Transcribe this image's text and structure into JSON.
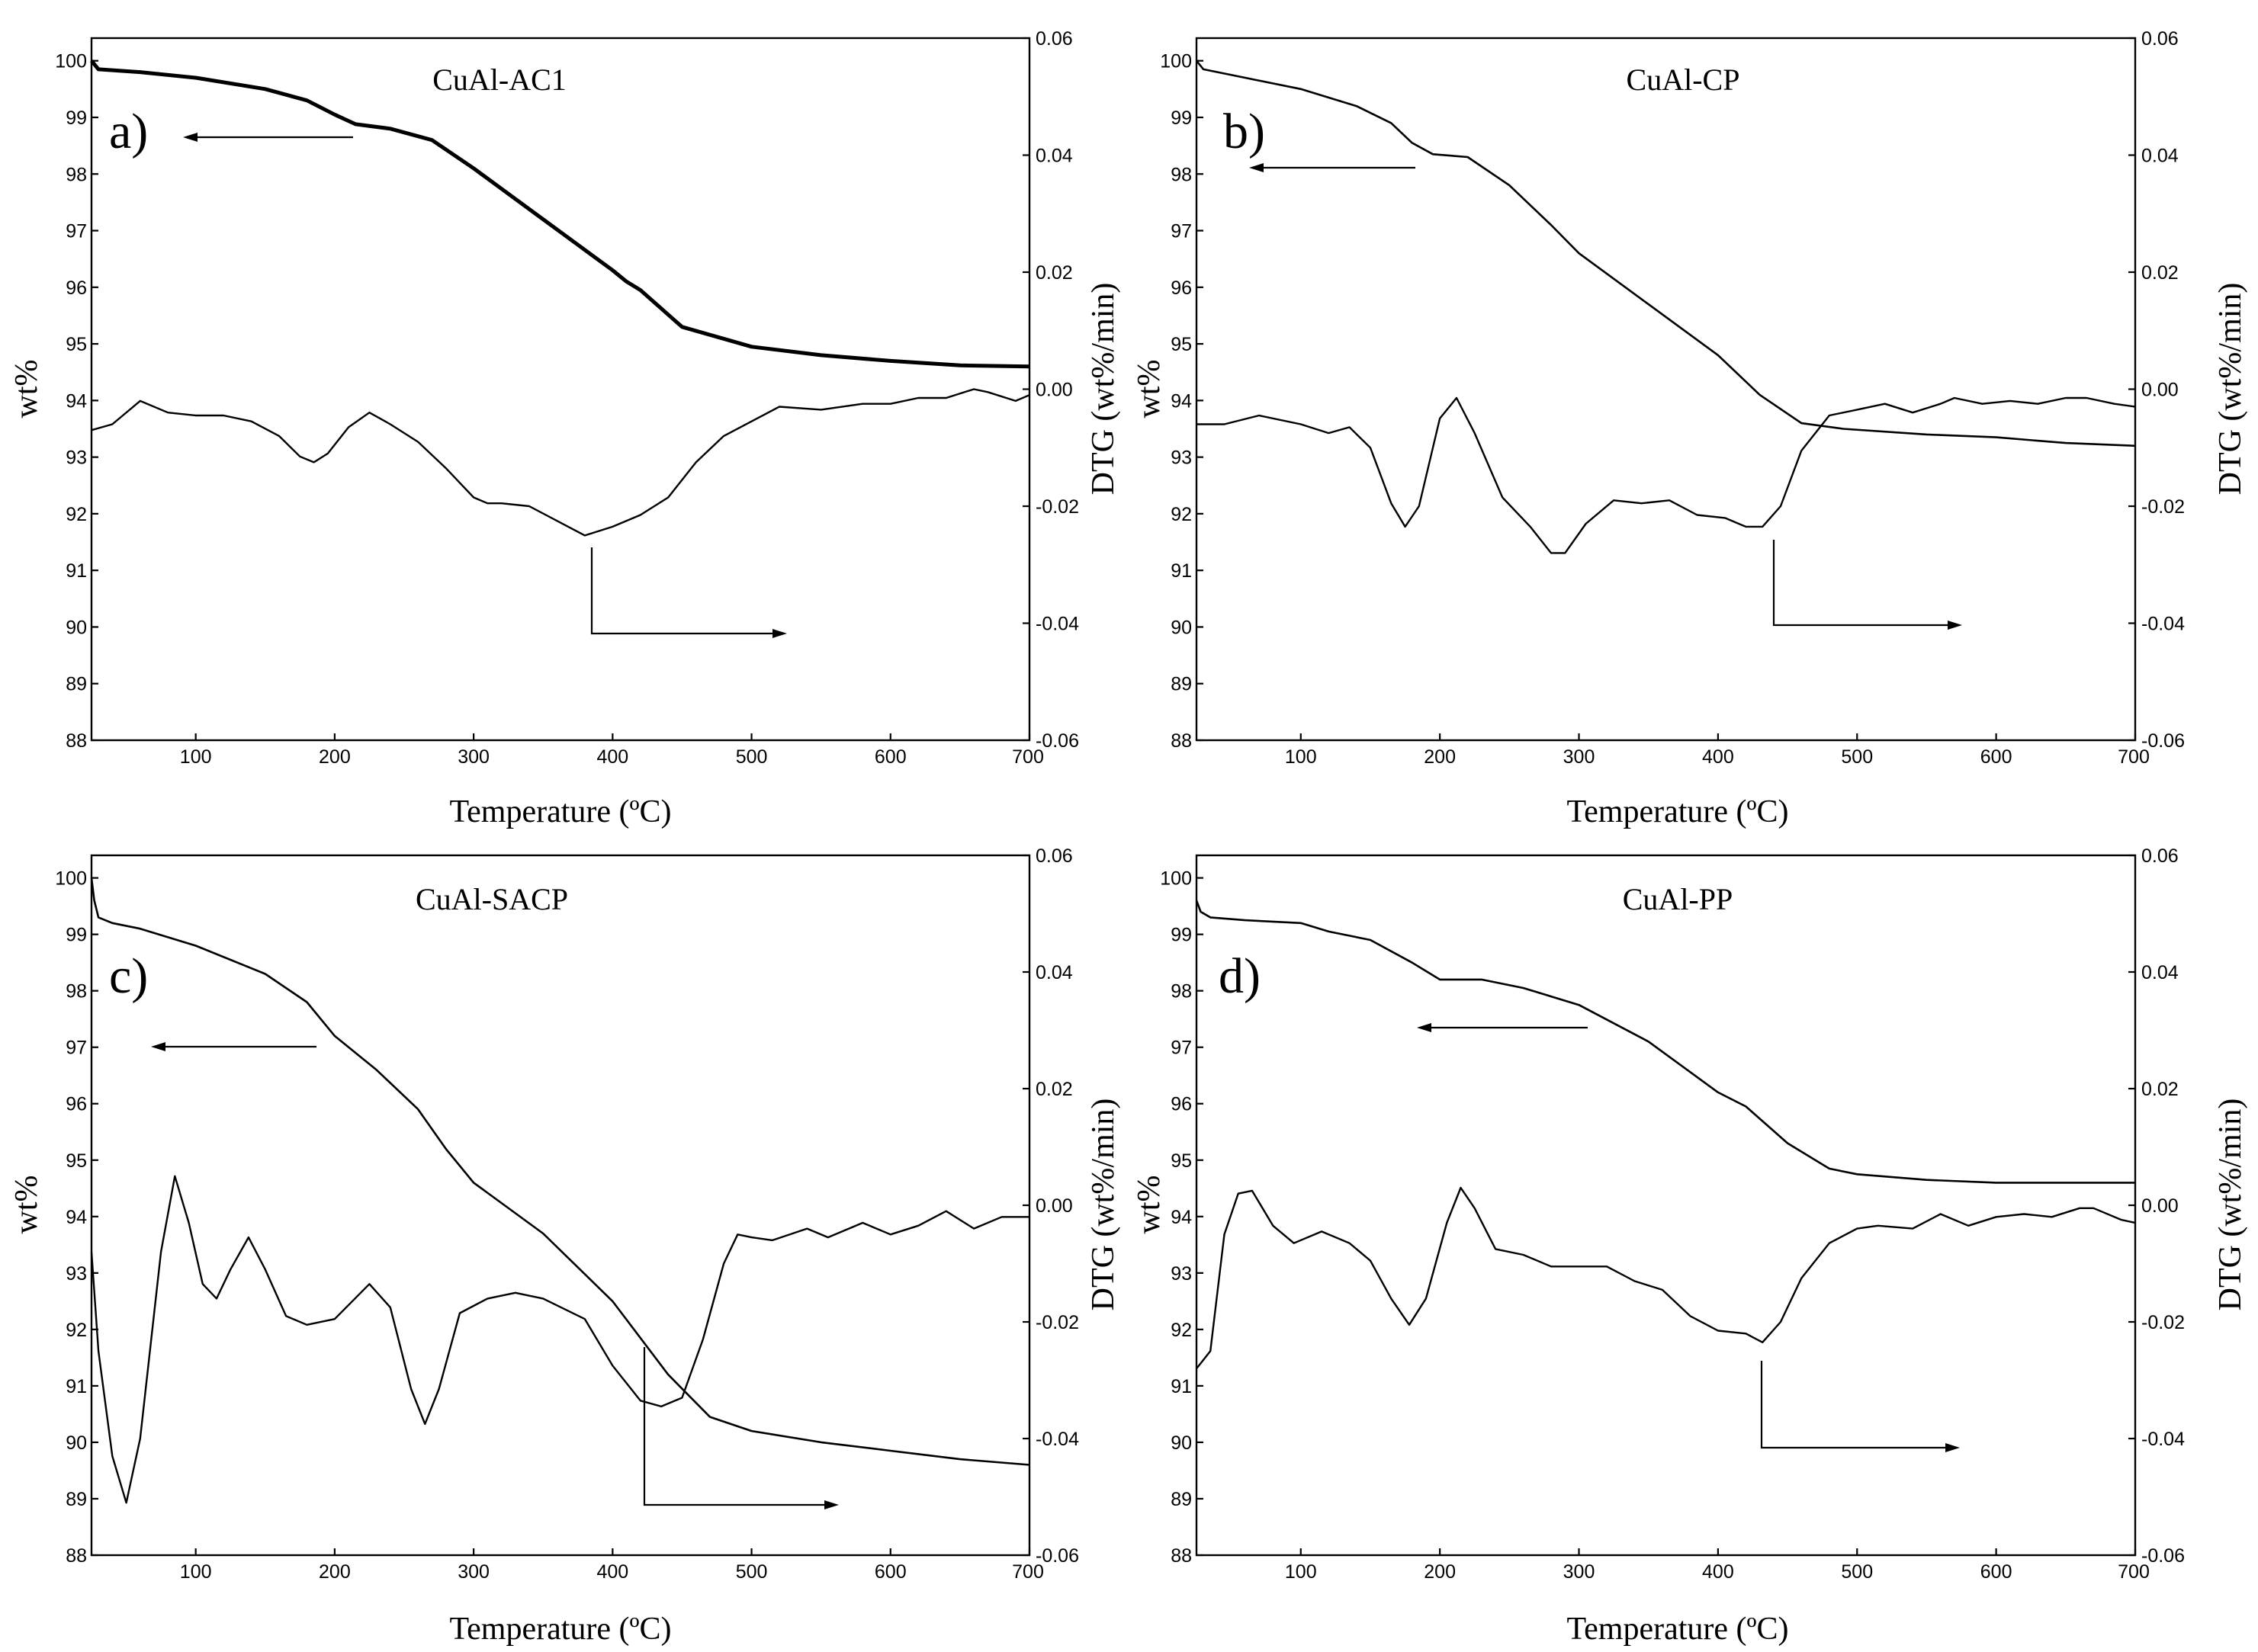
{
  "chart_data": [
    {
      "type": "line",
      "panel_label": "a)",
      "title": "CuAl-AC1",
      "xlabel": "Temperature (ºC)",
      "ylabel": "wt%",
      "y2label": "DTG (wt%/min)",
      "xlim": [
        25,
        700
      ],
      "ylim": [
        88,
        100.4
      ],
      "y2lim": [
        -0.06,
        0.06
      ],
      "xticks": [
        "100",
        "200",
        "300",
        "400",
        "500",
        "600",
        "700"
      ],
      "yticks": [
        "88",
        "89",
        "90",
        "91",
        "92",
        "93",
        "94",
        "95",
        "96",
        "97",
        "98",
        "99",
        "100"
      ],
      "y2ticks": [
        "-0.06",
        "-0.04",
        "-0.02",
        "0.00",
        "0.02",
        "0.04",
        "0.06"
      ],
      "series": [
        {
          "name": "TG",
          "axis": "left",
          "x": [
            25,
            30,
            60,
            100,
            150,
            180,
            200,
            215,
            240,
            270,
            300,
            350,
            400,
            410,
            420,
            450,
            500,
            550,
            600,
            650,
            700
          ],
          "values": [
            100.0,
            99.85,
            99.8,
            99.7,
            99.5,
            99.3,
            99.05,
            98.88,
            98.8,
            98.6,
            98.1,
            97.2,
            96.3,
            96.1,
            95.95,
            95.3,
            94.95,
            94.8,
            94.7,
            94.62,
            94.6
          ]
        },
        {
          "name": "DTG",
          "axis": "right",
          "x": [
            25,
            40,
            60,
            80,
            100,
            120,
            140,
            160,
            175,
            185,
            195,
            210,
            225,
            240,
            260,
            280,
            300,
            310,
            320,
            340,
            360,
            380,
            400,
            420,
            440,
            460,
            480,
            500,
            520,
            550,
            580,
            600,
            620,
            640,
            660,
            670,
            690,
            700
          ],
          "values": [
            -0.007,
            -0.006,
            -0.002,
            -0.004,
            -0.0045,
            -0.0045,
            -0.0055,
            -0.008,
            -0.0115,
            -0.0125,
            -0.011,
            -0.0065,
            -0.004,
            -0.006,
            -0.009,
            -0.0135,
            -0.0185,
            -0.0195,
            -0.0195,
            -0.02,
            -0.0225,
            -0.025,
            -0.0235,
            -0.0215,
            -0.0185,
            -0.0125,
            -0.008,
            -0.0055,
            -0.003,
            -0.0035,
            -0.0025,
            -0.0025,
            -0.0015,
            -0.0015,
            0.0,
            -0.0005,
            -0.002,
            -0.001
          ]
        }
      ],
      "annotations": [
        {
          "type": "arrow",
          "direction": "left",
          "points_to": "TG (left axis)"
        },
        {
          "type": "arrow",
          "direction": "right",
          "points_to": "DTG (right axis)"
        }
      ]
    },
    {
      "type": "line",
      "panel_label": "b)",
      "title": "CuAl-CP",
      "xlabel": "Temperature (ºC)",
      "ylabel": "wt%",
      "y2label": "DTG (wt%/min)",
      "xlim": [
        25,
        700
      ],
      "ylim": [
        88,
        100.4
      ],
      "y2lim": [
        -0.06,
        0.06
      ],
      "xticks": [
        "100",
        "200",
        "300",
        "400",
        "500",
        "600",
        "700"
      ],
      "yticks": [
        "88",
        "89",
        "90",
        "91",
        "92",
        "93",
        "94",
        "95",
        "96",
        "97",
        "98",
        "99",
        "100"
      ],
      "y2ticks": [
        "-0.06",
        "-0.04",
        "-0.02",
        "0.00",
        "0.02",
        "0.04",
        "0.06"
      ],
      "series": [
        {
          "name": "TG",
          "axis": "left",
          "x": [
            25,
            30,
            60,
            100,
            140,
            165,
            180,
            195,
            220,
            250,
            280,
            300,
            350,
            400,
            430,
            460,
            490,
            550,
            600,
            650,
            700
          ],
          "values": [
            100.0,
            99.85,
            99.7,
            99.5,
            99.2,
            98.9,
            98.55,
            98.35,
            98.3,
            97.8,
            97.1,
            96.6,
            95.7,
            94.8,
            94.1,
            93.6,
            93.5,
            93.4,
            93.35,
            93.25,
            93.2
          ]
        },
        {
          "name": "DTG",
          "axis": "right",
          "x": [
            25,
            45,
            70,
            100,
            120,
            135,
            150,
            165,
            175,
            185,
            200,
            212,
            225,
            245,
            265,
            280,
            290,
            305,
            325,
            345,
            365,
            385,
            405,
            420,
            432,
            445,
            460,
            480,
            500,
            520,
            540,
            560,
            570,
            590,
            610,
            630,
            650,
            665,
            685,
            700
          ],
          "values": [
            -0.006,
            -0.006,
            -0.0045,
            -0.006,
            -0.0075,
            -0.0065,
            -0.01,
            -0.0195,
            -0.0235,
            -0.02,
            -0.005,
            -0.0015,
            -0.0075,
            -0.0185,
            -0.0235,
            -0.028,
            -0.028,
            -0.023,
            -0.019,
            -0.0195,
            -0.019,
            -0.0215,
            -0.022,
            -0.0235,
            -0.0235,
            -0.02,
            -0.0105,
            -0.0045,
            -0.0035,
            -0.0025,
            -0.004,
            -0.0025,
            -0.0015,
            -0.0025,
            -0.002,
            -0.0025,
            -0.0015,
            -0.0015,
            -0.0025,
            -0.003
          ]
        }
      ],
      "annotations": [
        {
          "type": "arrow",
          "direction": "left",
          "points_to": "TG (left axis)"
        },
        {
          "type": "arrow",
          "direction": "right",
          "points_to": "DTG (right axis)"
        }
      ]
    },
    {
      "type": "line",
      "panel_label": "c)",
      "title": "CuAl-SACP",
      "xlabel": "Temperature (ºC)",
      "ylabel": "wt%",
      "y2label": "DTG (wt%/min)",
      "xlim": [
        25,
        700
      ],
      "ylim": [
        88,
        100.4
      ],
      "y2lim": [
        -0.06,
        0.06
      ],
      "xticks": [
        "100",
        "200",
        "300",
        "400",
        "500",
        "600",
        "700"
      ],
      "yticks": [
        "88",
        "89",
        "90",
        "91",
        "92",
        "93",
        "94",
        "95",
        "96",
        "97",
        "98",
        "99",
        "100"
      ],
      "y2ticks": [
        "-0.06",
        "-0.04",
        "-0.02",
        "0.00",
        "0.02",
        "0.04",
        "0.06"
      ],
      "series": [
        {
          "name": "TG",
          "axis": "left",
          "x": [
            25,
            27,
            30,
            40,
            60,
            100,
            150,
            180,
            200,
            230,
            260,
            280,
            300,
            350,
            400,
            440,
            470,
            500,
            550,
            600,
            650,
            700
          ],
          "values": [
            100.0,
            99.6,
            99.3,
            99.2,
            99.1,
            98.8,
            98.3,
            97.8,
            97.2,
            96.6,
            95.9,
            95.2,
            94.6,
            93.7,
            92.5,
            91.2,
            90.45,
            90.2,
            90.0,
            89.85,
            89.7,
            89.6
          ]
        },
        {
          "name": "DTG",
          "axis": "right",
          "x": [
            25,
            30,
            40,
            50,
            60,
            75,
            85,
            95,
            105,
            115,
            125,
            138,
            150,
            165,
            180,
            200,
            225,
            240,
            255,
            265,
            275,
            290,
            310,
            330,
            350,
            380,
            400,
            420,
            435,
            450,
            465,
            480,
            490,
            500,
            515,
            540,
            555,
            580,
            600,
            620,
            640,
            660,
            680,
            700
          ],
          "values": [
            -0.008,
            -0.025,
            -0.043,
            -0.051,
            -0.04,
            -0.008,
            0.005,
            -0.003,
            -0.0135,
            -0.016,
            -0.011,
            -0.0055,
            -0.011,
            -0.019,
            -0.0205,
            -0.0195,
            -0.0135,
            -0.0175,
            -0.0315,
            -0.0375,
            -0.0315,
            -0.0185,
            -0.016,
            -0.015,
            -0.016,
            -0.0195,
            -0.0275,
            -0.0335,
            -0.0345,
            -0.033,
            -0.023,
            -0.01,
            -0.005,
            -0.0055,
            -0.006,
            -0.004,
            -0.0055,
            -0.003,
            -0.005,
            -0.0035,
            -0.001,
            -0.004,
            -0.002,
            -0.002
          ]
        }
      ],
      "annotations": [
        {
          "type": "arrow",
          "direction": "left",
          "points_to": "TG (left axis)"
        },
        {
          "type": "arrow",
          "direction": "right",
          "points_to": "DTG (right axis)"
        }
      ]
    },
    {
      "type": "line",
      "panel_label": "d)",
      "title": "CuAl-PP",
      "xlabel": "Temperature (ºC)",
      "ylabel": "wt%",
      "y2label": "DTG (wt%/min)",
      "xlim": [
        25,
        700
      ],
      "ylim": [
        88,
        100.4
      ],
      "y2lim": [
        -0.06,
        0.06
      ],
      "xticks": [
        "100",
        "200",
        "300",
        "400",
        "500",
        "600",
        "700"
      ],
      "yticks": [
        "88",
        "89",
        "90",
        "91",
        "92",
        "93",
        "94",
        "95",
        "96",
        "97",
        "98",
        "99",
        "100"
      ],
      "y2ticks": [
        "-0.06",
        "-0.04",
        "-0.02",
        "0.00",
        "0.02",
        "0.04",
        "0.06"
      ],
      "series": [
        {
          "name": "TG",
          "axis": "left",
          "x": [
            25,
            28,
            35,
            60,
            100,
            120,
            150,
            180,
            200,
            230,
            260,
            300,
            350,
            400,
            420,
            450,
            480,
            500,
            550,
            600,
            650,
            700
          ],
          "values": [
            99.6,
            99.4,
            99.3,
            99.25,
            99.2,
            99.05,
            98.9,
            98.5,
            98.2,
            98.2,
            98.05,
            97.75,
            97.1,
            96.2,
            95.95,
            95.3,
            94.85,
            94.75,
            94.65,
            94.6,
            94.6,
            94.6
          ]
        },
        {
          "name": "DTG",
          "axis": "right",
          "x": [
            25,
            35,
            45,
            55,
            65,
            80,
            95,
            115,
            135,
            150,
            165,
            178,
            190,
            205,
            215,
            225,
            240,
            260,
            280,
            300,
            320,
            340,
            360,
            380,
            400,
            420,
            432,
            445,
            460,
            480,
            500,
            515,
            540,
            560,
            580,
            600,
            620,
            640,
            660,
            670,
            690,
            700
          ],
          "values": [
            -0.028,
            -0.025,
            -0.005,
            0.002,
            0.0025,
            -0.0035,
            -0.0065,
            -0.0045,
            -0.0065,
            -0.0095,
            -0.016,
            -0.0205,
            -0.016,
            -0.003,
            0.003,
            -0.0005,
            -0.0075,
            -0.0085,
            -0.0105,
            -0.0105,
            -0.0105,
            -0.013,
            -0.0145,
            -0.019,
            -0.0215,
            -0.022,
            -0.0235,
            -0.02,
            -0.0125,
            -0.0065,
            -0.004,
            -0.0035,
            -0.004,
            -0.0015,
            -0.0035,
            -0.002,
            -0.0015,
            -0.002,
            -0.0005,
            -0.0005,
            -0.0025,
            -0.003
          ]
        }
      ],
      "annotations": [
        {
          "type": "arrow",
          "direction": "left",
          "points_to": "TG (left axis)"
        },
        {
          "type": "arrow",
          "direction": "right",
          "points_to": "DTG (right axis)"
        }
      ]
    }
  ]
}
